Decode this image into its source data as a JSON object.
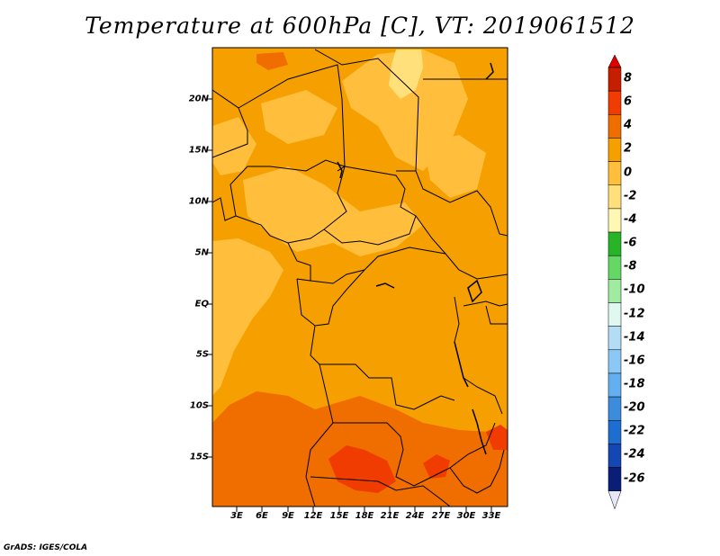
{
  "title": "Temperature at 600hPa [C], VT: 2019061512",
  "credit": "GrADS: IGES/COLA",
  "axes": {
    "lat_labels": [
      "20N",
      "15N",
      "10N",
      "5N",
      "EQ",
      "5S",
      "10S",
      "15S"
    ],
    "lon_labels": [
      "3E",
      "6E",
      "9E",
      "12E",
      "15E",
      "18E",
      "21E",
      "24E",
      "27E",
      "30E",
      "33E"
    ]
  },
  "colorbar": {
    "labels": [
      "8",
      "6",
      "4",
      "2",
      "0",
      "-2",
      "-4",
      "-6",
      "-8",
      "-10",
      "-12",
      "-14",
      "-16",
      "-18",
      "-20",
      "-22",
      "-24",
      "-26"
    ],
    "colors": [
      "#c81e00",
      "#f03c00",
      "#f06e00",
      "#f5a000",
      "#ffbe3c",
      "#ffe07a",
      "#fff8b4",
      "#28b428",
      "#64d764",
      "#a0eba0",
      "#e1f8f0",
      "#b4ddf5",
      "#8cc8f5",
      "#64aff0",
      "#3c8cdc",
      "#1e6ed2",
      "#1446b4",
      "#0a1e78"
    ],
    "max_arrow_color": "#dc0000",
    "min_arrow_color": "#e6e6f8"
  },
  "map": {
    "lat_range": [
      -20.5,
      25
    ],
    "lon_range": [
      0.5,
      33.5
    ],
    "dominant_fill": "#f5a000",
    "warm_fill": "#f06e00",
    "hot_fill": "#f03c00",
    "cool_fill": "#ffbe3c",
    "cooler_fill": "#ffe07a"
  }
}
